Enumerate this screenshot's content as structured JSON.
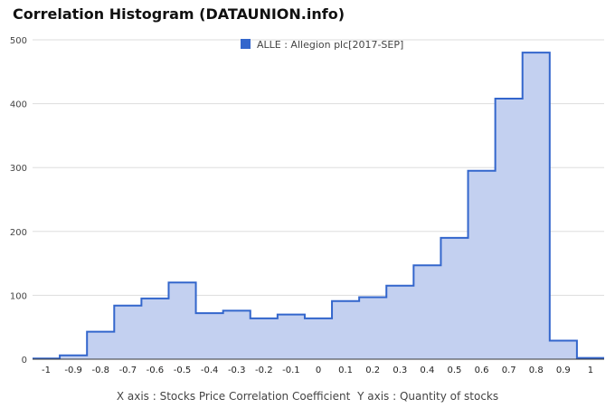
{
  "chart_data": {
    "type": "bar",
    "title": "Correlation Histogram (DATAUNION.info)",
    "legend": {
      "name": "ALLE : Allegion plc[2017-SEP]",
      "color": "#3366cc",
      "position": "top"
    },
    "xlabel": "X axis : Stocks Price Correlation Coefficient",
    "ylabel": "Y axis : Quantity of stocks",
    "x_ticks": [
      "-1",
      "-0.9",
      "-0.8",
      "-0.7",
      "-0.6",
      "-0.5",
      "-0.4",
      "-0.3",
      "-0.2",
      "-0.1",
      "0",
      "0.1",
      "0.2",
      "0.3",
      "0.4",
      "0.5",
      "0.6",
      "0.7",
      "0.8",
      "0.9",
      "1"
    ],
    "y_ticks": [
      "0",
      "100",
      "200",
      "300",
      "400",
      "500"
    ],
    "ylim": [
      0,
      500
    ],
    "xlim": [
      -1.05,
      1.05
    ],
    "grid": true,
    "series": [
      {
        "name": "ALLE : Allegion plc[2017-SEP]",
        "x": [
          -1.0,
          -0.9,
          -0.8,
          -0.7,
          -0.6,
          -0.5,
          -0.4,
          -0.3,
          -0.2,
          -0.1,
          0.0,
          0.1,
          0.2,
          0.3,
          0.4,
          0.5,
          0.6,
          0.7,
          0.8,
          0.9,
          1.0
        ],
        "values": [
          1,
          6,
          43,
          84,
          95,
          120,
          72,
          76,
          64,
          70,
          64,
          91,
          97,
          115,
          147,
          190,
          295,
          408,
          480,
          29,
          2
        ]
      }
    ],
    "colors": {
      "line": "#3366cc",
      "fill": "#c3d0f0",
      "grid": "#dddddd"
    }
  }
}
